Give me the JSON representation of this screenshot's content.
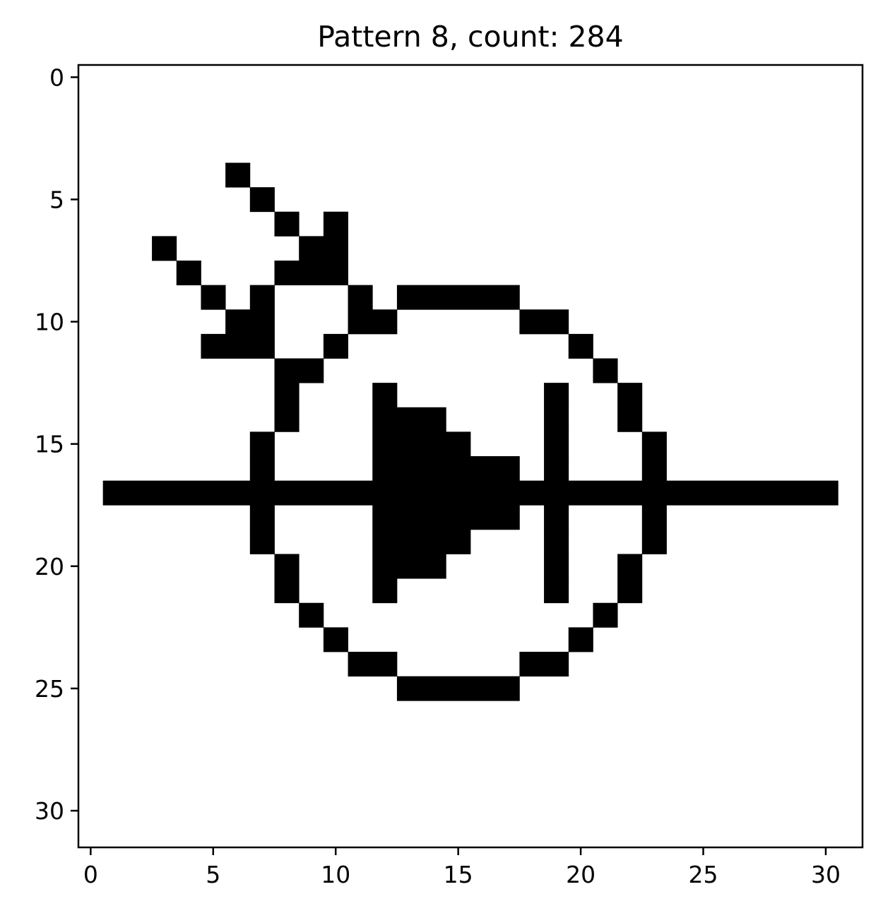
{
  "chart_data": {
    "type": "heatmap",
    "title": "Pattern 8, count: 284",
    "xlabel": "",
    "ylabel": "",
    "xlim": [
      -0.5,
      31.5
    ],
    "ylim": [
      31.5,
      -0.5
    ],
    "xticks": [
      0,
      5,
      10,
      15,
      20,
      25,
      30
    ],
    "yticks": [
      0,
      5,
      10,
      15,
      20,
      25,
      30
    ],
    "grid": false,
    "colors": {
      "on": "#000000",
      "off": "#ffffff"
    },
    "rows": 32,
    "cols": 32,
    "filled_runs": [
      {
        "row": 4,
        "runs": [
          [
            6,
            6
          ]
        ]
      },
      {
        "row": 5,
        "runs": [
          [
            7,
            7
          ]
        ]
      },
      {
        "row": 6,
        "runs": [
          [
            8,
            8
          ],
          [
            10,
            10
          ]
        ]
      },
      {
        "row": 7,
        "runs": [
          [
            3,
            3
          ],
          [
            9,
            10
          ]
        ]
      },
      {
        "row": 8,
        "runs": [
          [
            4,
            4
          ],
          [
            8,
            10
          ]
        ]
      },
      {
        "row": 9,
        "runs": [
          [
            5,
            5
          ],
          [
            7,
            7
          ],
          [
            11,
            11
          ],
          [
            13,
            17
          ]
        ]
      },
      {
        "row": 10,
        "runs": [
          [
            6,
            7
          ],
          [
            11,
            12
          ],
          [
            18,
            19
          ]
        ]
      },
      {
        "row": 11,
        "runs": [
          [
            5,
            7
          ],
          [
            10,
            10
          ],
          [
            20,
            20
          ]
        ]
      },
      {
        "row": 12,
        "runs": [
          [
            8,
            9
          ],
          [
            21,
            21
          ]
        ]
      },
      {
        "row": 13,
        "runs": [
          [
            8,
            8
          ],
          [
            12,
            12
          ],
          [
            19,
            19
          ],
          [
            22,
            22
          ]
        ]
      },
      {
        "row": 14,
        "runs": [
          [
            8,
            8
          ],
          [
            12,
            14
          ],
          [
            19,
            19
          ],
          [
            22,
            22
          ]
        ]
      },
      {
        "row": 15,
        "runs": [
          [
            7,
            7
          ],
          [
            12,
            15
          ],
          [
            19,
            19
          ],
          [
            23,
            23
          ]
        ]
      },
      {
        "row": 16,
        "runs": [
          [
            7,
            7
          ],
          [
            12,
            17
          ],
          [
            19,
            19
          ],
          [
            23,
            23
          ]
        ]
      },
      {
        "row": 17,
        "runs": [
          [
            1,
            30
          ]
        ]
      },
      {
        "row": 18,
        "runs": [
          [
            7,
            7
          ],
          [
            12,
            17
          ],
          [
            19,
            19
          ],
          [
            23,
            23
          ]
        ]
      },
      {
        "row": 19,
        "runs": [
          [
            7,
            7
          ],
          [
            12,
            15
          ],
          [
            19,
            19
          ],
          [
            23,
            23
          ]
        ]
      },
      {
        "row": 20,
        "runs": [
          [
            8,
            8
          ],
          [
            12,
            14
          ],
          [
            19,
            19
          ],
          [
            22,
            22
          ]
        ]
      },
      {
        "row": 21,
        "runs": [
          [
            8,
            8
          ],
          [
            12,
            12
          ],
          [
            19,
            19
          ],
          [
            22,
            22
          ]
        ]
      },
      {
        "row": 22,
        "runs": [
          [
            9,
            9
          ],
          [
            21,
            21
          ]
        ]
      },
      {
        "row": 23,
        "runs": [
          [
            10,
            10
          ],
          [
            20,
            20
          ]
        ]
      },
      {
        "row": 24,
        "runs": [
          [
            11,
            12
          ],
          [
            18,
            19
          ]
        ]
      },
      {
        "row": 25,
        "runs": [
          [
            13,
            17
          ]
        ]
      }
    ]
  }
}
